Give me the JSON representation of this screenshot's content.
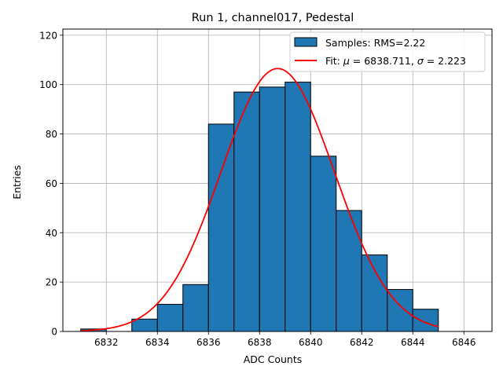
{
  "chart_data": {
    "type": "bar",
    "title": "Run 1, channel017, Pedestal",
    "xlabel": "ADC Counts",
    "ylabel": "Entries",
    "xlim": [
      6830.3,
      6847.1
    ],
    "ylim": [
      0,
      122.5
    ],
    "grid": true,
    "legend_position": "top-right",
    "xticks": [
      6832,
      6834,
      6836,
      6838,
      6840,
      6842,
      6844,
      6846
    ],
    "yticks": [
      0,
      20,
      40,
      60,
      80,
      100,
      120
    ],
    "histogram": {
      "name": "Samples: RMS=2.22",
      "color": "#1f77b4",
      "bin_edges": [
        6831,
        6832,
        6833,
        6834,
        6835,
        6836,
        6837,
        6838,
        6839,
        6840,
        6841,
        6842,
        6843,
        6844,
        6845
      ],
      "counts": [
        1,
        0,
        5,
        11,
        19,
        84,
        97,
        99,
        101,
        71,
        49,
        31,
        17,
        9
      ]
    },
    "fit": {
      "name": "Fit: μ = 6838.711, σ = 2.223",
      "color": "#ff0000",
      "function": "gaussian",
      "mu": 6838.711,
      "sigma": 2.223,
      "amplitude": 106.5,
      "x_range": [
        6831,
        6845
      ]
    },
    "legend": {
      "samples_label": "Samples: RMS=2.22",
      "fit_prefix": "Fit: ",
      "fit_mu_symbol": "μ",
      "fit_mu_value": " = 6838.711, ",
      "fit_sigma_symbol": "σ",
      "fit_sigma_value": " = 2.223"
    }
  }
}
